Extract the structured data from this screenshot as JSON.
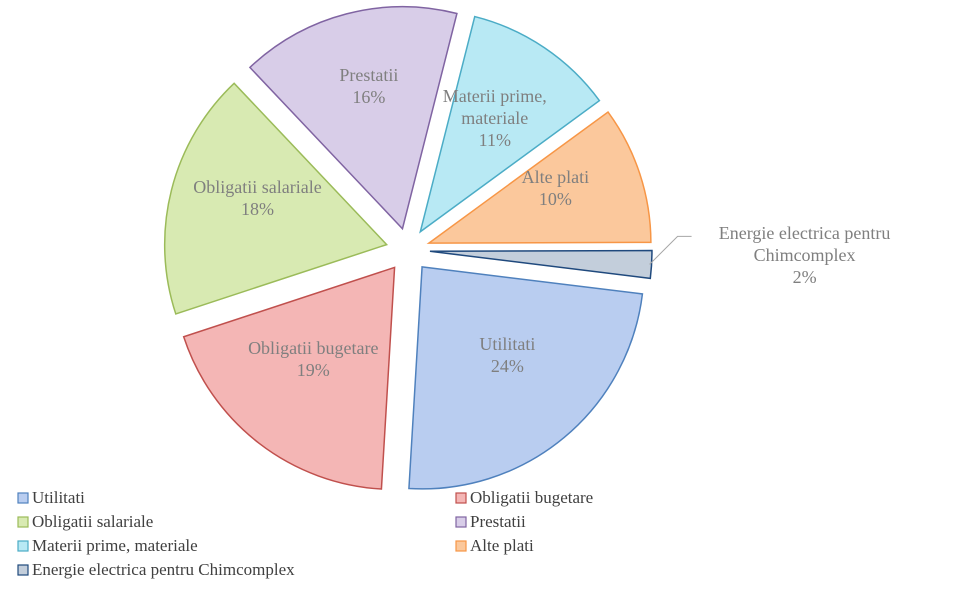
{
  "chart_data": {
    "type": "pie",
    "categories": [
      "Utilitati",
      "Obligatii bugetare",
      "Obligatii salariale",
      "Prestatii",
      "Materii prime, materiale",
      "Alte plati",
      "Energie electrica pentru Chimcomplex"
    ],
    "values": [
      24,
      19,
      18,
      16,
      11,
      10,
      2
    ],
    "value_labels": [
      "24%",
      "19%",
      "18%",
      "16%",
      "11%",
      "10%",
      "2%"
    ],
    "colors": [
      "#b9cdf0",
      "#f4b6b5",
      "#d8eab2",
      "#d8cde8",
      "#b8e9f4",
      "#fbc89c",
      "#c3cedb"
    ],
    "edge_colors": [
      "#4f81bd",
      "#c0504d",
      "#9bbb59",
      "#8064a2",
      "#4bacc6",
      "#f79646",
      "#1f497d"
    ],
    "legend": "bottom"
  }
}
